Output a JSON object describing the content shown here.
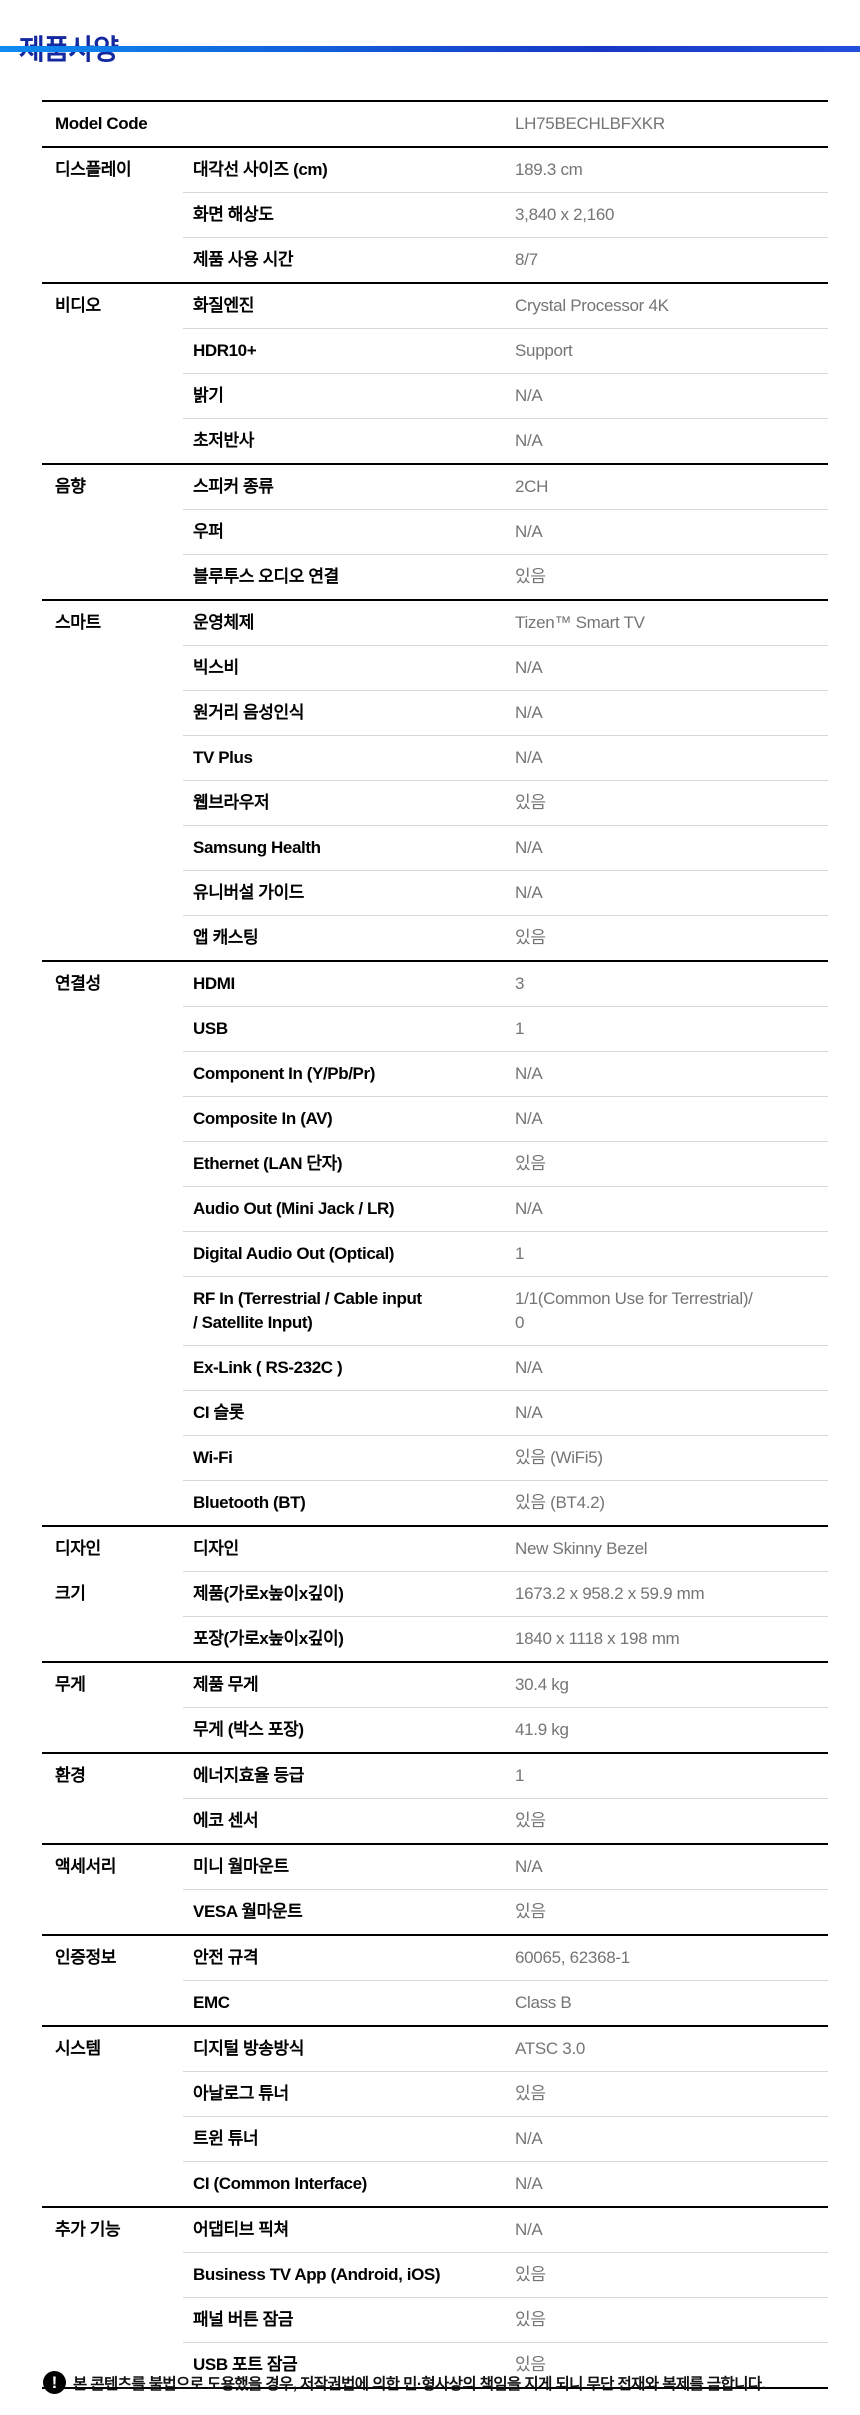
{
  "page": {
    "title": "제품사양",
    "footer": {
      "icon": "exclamation-icon",
      "text": "본 콘텐츠를 불법으로 도용했을 경우, 저작권법에 의한 민·형사상의 책임을 지게 되니 무단 전재와 복제를 금합니다."
    }
  },
  "colors": {
    "title_blue": "#1428a0",
    "accent_gradient_start": "#0e8bf1",
    "accent_gradient_end": "#2150dd",
    "value_gray": "#757575",
    "thick_line": "#000000",
    "thin_line": "#d8d8d8"
  },
  "spec_table": {
    "sections": [
      {
        "label": "Model Code",
        "divider": "thick",
        "rows": [
          {
            "name": "",
            "value": "LH75BECHLBFXKR"
          }
        ]
      },
      {
        "label": "디스플레이",
        "divider": "thick",
        "rows": [
          {
            "name": "대각선 사이즈 (cm)",
            "value": "189.3 cm"
          },
          {
            "name": "화면 해상도",
            "value": "3,840 x 2,160"
          },
          {
            "name": "제품 사용 시간",
            "value": "8/7"
          }
        ]
      },
      {
        "label": "비디오",
        "divider": "thick",
        "rows": [
          {
            "name": "화질엔진",
            "value": "Crystal Processor 4K"
          },
          {
            "name": "HDR10+",
            "value": "Support"
          },
          {
            "name": "밝기",
            "value": "N/A"
          },
          {
            "name": "초저반사",
            "value": "N/A"
          }
        ]
      },
      {
        "label": "음향",
        "divider": "thick",
        "rows": [
          {
            "name": "스피커 종류",
            "value": "2CH"
          },
          {
            "name": "우퍼",
            "value": "N/A"
          },
          {
            "name": "블루투스 오디오 연결",
            "value": "있음"
          }
        ]
      },
      {
        "label": "스마트",
        "divider": "thick",
        "rows": [
          {
            "name": "운영체제",
            "value": "Tizen™ Smart TV"
          },
          {
            "name": "빅스비",
            "value": "N/A"
          },
          {
            "name": "원거리 음성인식",
            "value": "N/A"
          },
          {
            "name": "TV Plus",
            "value": "N/A"
          },
          {
            "name": "웹브라우저",
            "value": "있음"
          },
          {
            "name": "Samsung Health",
            "value": "N/A"
          },
          {
            "name": "유니버설 가이드",
            "value": "N/A"
          },
          {
            "name": "앱 캐스팅",
            "value": "있음"
          }
        ]
      },
      {
        "label": "연결성",
        "divider": "thick",
        "rows": [
          {
            "name": "HDMI",
            "value": "3"
          },
          {
            "name": "USB",
            "value": "1"
          },
          {
            "name": "Component In (Y/Pb/Pr)",
            "value": "N/A"
          },
          {
            "name": "Composite In (AV)",
            "value": "N/A"
          },
          {
            "name": "Ethernet (LAN 단자)",
            "value": "있음"
          },
          {
            "name": "Audio Out (Mini Jack / LR)",
            "value": "N/A"
          },
          {
            "name": "Digital Audio Out (Optical)",
            "value": "1"
          },
          {
            "name": "RF In (Terrestrial / Cable input\n/ Satellite Input)",
            "value": "1/1(Common Use for Terrestrial)/\n0"
          },
          {
            "name": "Ex-Link ( RS-232C )",
            "value": "N/A"
          },
          {
            "name": "CI 슬롯",
            "value": "N/A"
          },
          {
            "name": "Wi-Fi",
            "value": "있음 (WiFi5)"
          },
          {
            "name": "Bluetooth (BT)",
            "value": "있음 (BT4.2)"
          }
        ]
      },
      {
        "label": "디자인",
        "divider": "thick",
        "rows": [
          {
            "name": "디자인",
            "value": "New Skinny Bezel"
          }
        ]
      },
      {
        "label": "크기",
        "divider": "thin",
        "rows": [
          {
            "name": "제품(가로x높이x깊이)",
            "value": "1673.2 x 958.2 x 59.9 mm"
          },
          {
            "name": "포장(가로x높이x깊이)",
            "value": "1840 x 1118 x 198 mm"
          }
        ]
      },
      {
        "label": "무게",
        "divider": "thick",
        "rows": [
          {
            "name": "제품 무게",
            "value": "30.4 kg"
          },
          {
            "name": "무게 (박스 포장)",
            "value": "41.9 kg"
          }
        ]
      },
      {
        "label": "환경",
        "divider": "thick",
        "rows": [
          {
            "name": "에너지효율 등급",
            "value": "1"
          },
          {
            "name": "에코 센서",
            "value": "있음"
          }
        ]
      },
      {
        "label": "액세서리",
        "divider": "thick",
        "rows": [
          {
            "name": "미니 월마운트",
            "value": "N/A"
          },
          {
            "name": "VESA 월마운트",
            "value": "있음"
          }
        ]
      },
      {
        "label": "인증정보",
        "divider": "thick",
        "rows": [
          {
            "name": "안전 규격",
            "value": "60065, 62368-1"
          },
          {
            "name": "EMC",
            "value": "Class B"
          }
        ]
      },
      {
        "label": "시스템",
        "divider": "thick",
        "rows": [
          {
            "name": "디지털 방송방식",
            "value": "ATSC 3.0"
          },
          {
            "name": "아날로그 튜너",
            "value": "있음"
          },
          {
            "name": "트윈 튜너",
            "value": "N/A"
          },
          {
            "name": "CI (Common Interface)",
            "value": "N/A"
          }
        ]
      },
      {
        "label": "추가 기능",
        "divider": "thick",
        "rows": [
          {
            "name": "어댑티브 픽쳐",
            "value": "N/A"
          },
          {
            "name": "Business TV App (Android, iOS)",
            "value": "있음"
          },
          {
            "name": "패널 버튼 잠금",
            "value": "있음"
          },
          {
            "name": "USB 포트 잠금",
            "value": "있음"
          }
        ]
      }
    ]
  }
}
